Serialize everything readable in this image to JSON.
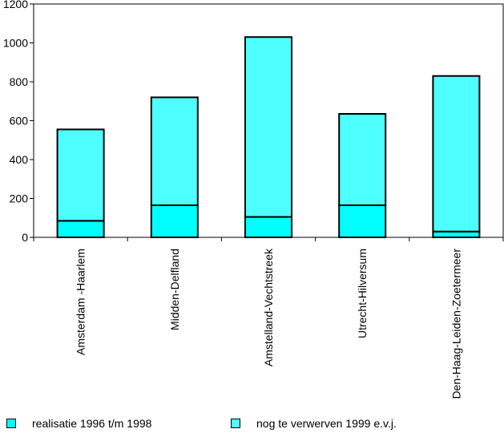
{
  "chart_data": {
    "type": "bar",
    "stacked": true,
    "categories": [
      "Amsterdam -Haarlem",
      "Midden-Delfland",
      "Amstelland-Vechtstreek",
      "Utrecht-Hilversum",
      "Den-Haag-Leiden-Zoetermeer"
    ],
    "series": [
      {
        "name": "realisatie 1996 t/m 1998",
        "values": [
          85,
          165,
          105,
          165,
          30
        ],
        "color": "#00ffff"
      },
      {
        "name": "nog te verwerven 1999 e.v.j.",
        "values": [
          470,
          555,
          925,
          470,
          800
        ],
        "color": "#4dffff"
      }
    ],
    "yticks": [
      0,
      200,
      400,
      600,
      800,
      1000,
      1200
    ],
    "ylim": [
      0,
      1200
    ],
    "title": "",
    "xlabel": "",
    "ylabel": "",
    "grid": false,
    "legend_position": "bottom"
  }
}
